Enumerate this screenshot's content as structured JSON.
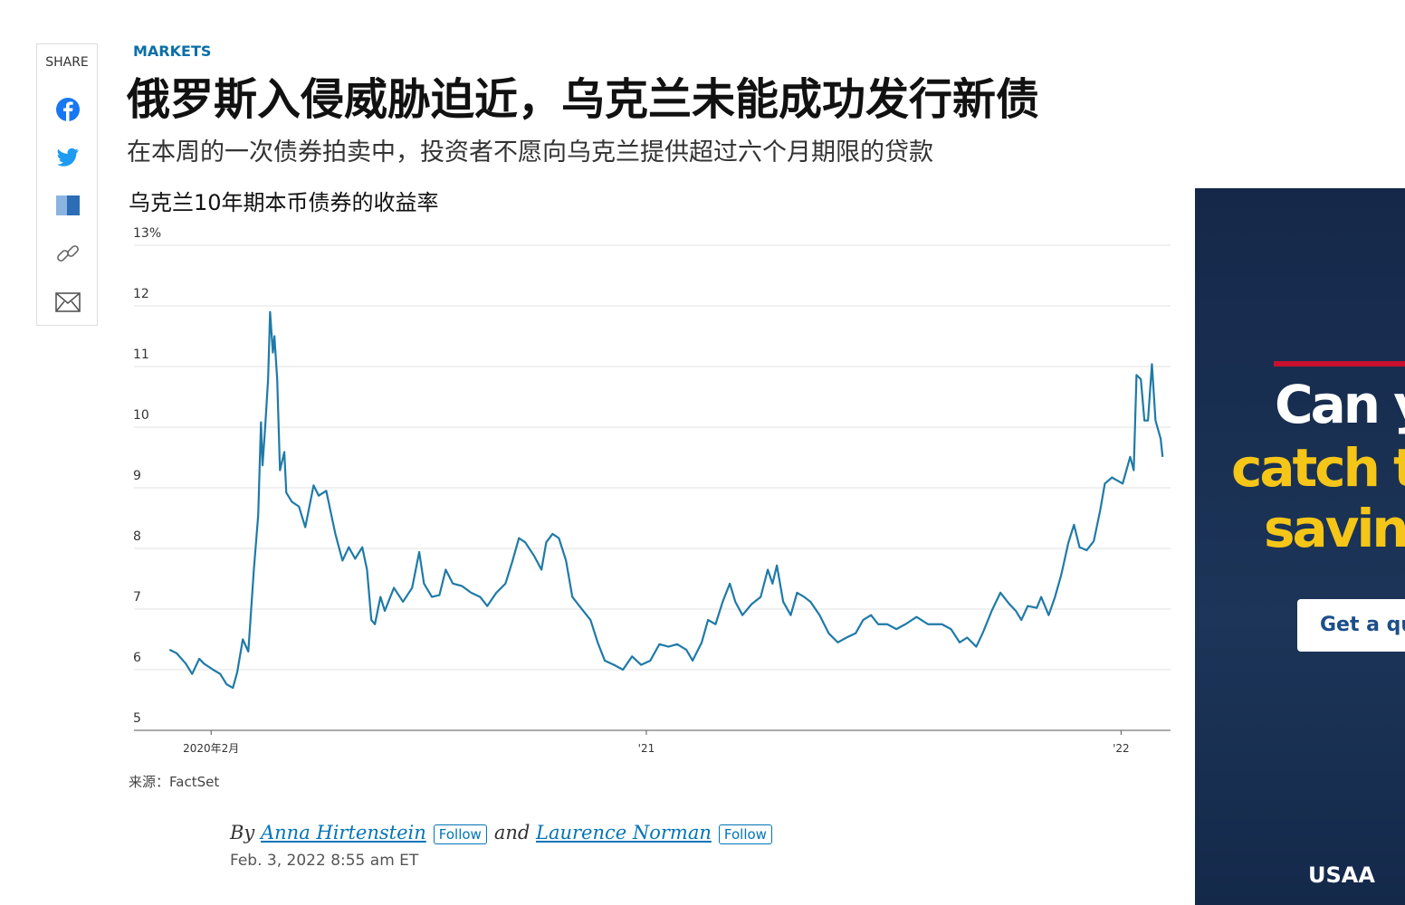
{
  "share": {
    "label": "SHARE"
  },
  "header": {
    "section": "MARKETS",
    "title": "俄罗斯入侵威胁迫近，乌克兰未能成功发行新债",
    "subtitle": "在本周的一次债券拍卖中，投资者不愿向乌克兰提供超过六个月期限的贷款"
  },
  "chart_data": {
    "type": "line",
    "title": "乌克兰10年期本币债券的收益率",
    "source": "来源：FactSet",
    "color": "#1f7aa8",
    "grid": true,
    "xlim": [
      -0.95,
      25.25
    ],
    "xticks": [
      {
        "value": 1,
        "label": "2020年2月"
      },
      {
        "value": 12,
        "label": "'21"
      },
      {
        "value": 24,
        "label": "'22"
      }
    ],
    "ylim": [
      5,
      13
    ],
    "yticks": [
      5,
      6,
      7,
      8,
      9,
      10,
      11,
      12,
      {
        "value": 13,
        "label": "13%"
      }
    ],
    "x": [
      -0.05,
      0.13,
      0.36,
      0.52,
      0.7,
      0.82,
      1.05,
      1.23,
      1.39,
      1.55,
      1.66,
      1.8,
      1.94,
      2.08,
      2.19,
      2.26,
      2.3,
      2.37,
      2.44,
      2.49,
      2.56,
      2.6,
      2.67,
      2.74,
      2.85,
      2.9,
      3.04,
      3.22,
      3.38,
      3.59,
      3.72,
      3.91,
      4.14,
      4.32,
      4.48,
      4.64,
      4.82,
      4.94,
      5.05,
      5.14,
      5.28,
      5.39,
      5.62,
      5.85,
      6.08,
      6.26,
      6.38,
      6.58,
      6.77,
      6.93,
      7.11,
      7.34,
      7.57,
      7.8,
      7.98,
      8.21,
      8.44,
      8.62,
      8.78,
      8.94,
      9.17,
      9.35,
      9.47,
      9.63,
      9.79,
      9.97,
      10.13,
      10.31,
      10.59,
      10.77,
      10.95,
      11.18,
      11.41,
      11.64,
      11.87,
      12.1,
      12.33,
      12.56,
      12.78,
      13.01,
      13.17,
      13.4,
      13.56,
      13.75,
      13.93,
      14.11,
      14.25,
      14.43,
      14.66,
      14.89,
      15.07,
      15.19,
      15.3,
      15.46,
      15.65,
      15.81,
      15.99,
      16.15,
      16.38,
      16.61,
      16.84,
      17.06,
      17.29,
      17.48,
      17.68,
      17.86,
      18.09,
      18.32,
      18.55,
      18.83,
      19.12,
      19.47,
      19.7,
      19.92,
      20.11,
      20.34,
      20.5,
      20.73,
      20.95,
      21.18,
      21.34,
      21.48,
      21.64,
      21.87,
      21.98,
      22.17,
      22.33,
      22.49,
      22.67,
      22.81,
      22.95,
      23.13,
      23.31,
      23.47,
      23.59,
      23.77,
      24.04,
      24.23,
      24.32,
      24.39,
      24.5,
      24.59,
      24.68,
      24.78,
      24.87,
      25.0,
      25.05
    ],
    "values": [
      6.33,
      6.27,
      6.1,
      5.93,
      6.18,
      6.1,
      6.0,
      5.93,
      5.76,
      5.7,
      5.96,
      6.5,
      6.3,
      7.65,
      8.55,
      10.08,
      9.37,
      10.04,
      10.79,
      11.9,
      11.23,
      11.5,
      10.79,
      9.29,
      9.59,
      8.92,
      8.77,
      8.69,
      8.35,
      9.04,
      8.87,
      8.95,
      8.24,
      7.8,
      8.02,
      7.83,
      8.02,
      7.65,
      6.82,
      6.75,
      7.2,
      6.97,
      7.35,
      7.12,
      7.35,
      7.94,
      7.42,
      7.2,
      7.23,
      7.65,
      7.42,
      7.38,
      7.27,
      7.2,
      7.05,
      7.27,
      7.42,
      7.8,
      8.17,
      8.1,
      7.87,
      7.65,
      8.1,
      8.24,
      8.17,
      7.8,
      7.2,
      7.05,
      6.82,
      6.45,
      6.15,
      6.08,
      6.0,
      6.22,
      6.08,
      6.15,
      6.42,
      6.38,
      6.42,
      6.33,
      6.15,
      6.45,
      6.82,
      6.75,
      7.12,
      7.42,
      7.12,
      6.9,
      7.08,
      7.2,
      7.65,
      7.42,
      7.72,
      7.12,
      6.9,
      7.27,
      7.2,
      7.12,
      6.9,
      6.6,
      6.45,
      6.53,
      6.6,
      6.82,
      6.9,
      6.75,
      6.75,
      6.67,
      6.75,
      6.87,
      6.75,
      6.75,
      6.67,
      6.45,
      6.53,
      6.38,
      6.6,
      6.97,
      7.27,
      7.08,
      6.97,
      6.82,
      7.05,
      7.02,
      7.2,
      6.9,
      7.2,
      7.57,
      8.1,
      8.39,
      8.02,
      7.97,
      8.12,
      8.62,
      9.07,
      9.17,
      9.07,
      9.51,
      9.29,
      10.86,
      10.79,
      10.11,
      10.11,
      11.04,
      10.11,
      9.81,
      9.51
    ]
  },
  "byline": {
    "by": "By",
    "author1": "Anna Hirtenstein",
    "follow1": "Follow",
    "and": "and",
    "author2": "Laurence Norman",
    "follow2": "Follow",
    "date": "Feb. 3, 2022 8:55 am ET"
  },
  "ad": {
    "line1": "Can y",
    "line2": "catch t",
    "line3": "saving",
    "button": "Get a qu",
    "brand": "USAA"
  }
}
